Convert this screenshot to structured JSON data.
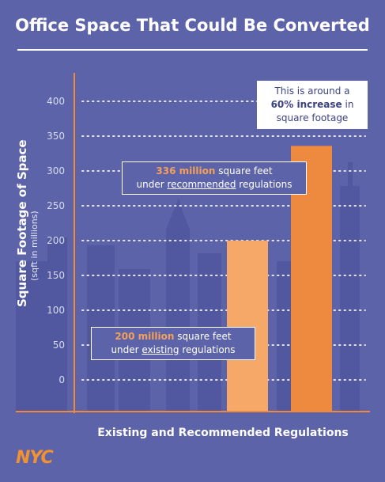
{
  "title": "Office Space That Could Be Converted",
  "chart_data": {
    "type": "bar",
    "categories": [
      "Existing",
      "Recommended"
    ],
    "values": [
      200,
      336
    ],
    "ylim": [
      0,
      400
    ],
    "yticks": [
      0,
      50,
      100,
      150,
      200,
      250,
      300,
      350,
      400
    ],
    "ylabel": "Square Footage of Space",
    "ylabel_sub": "(sqft in millions)",
    "xlabel": "Existing and Recommended Regulations",
    "grid": true,
    "bar_colors": [
      "#f5a868",
      "#ee8a3f"
    ]
  },
  "annotations": {
    "increase": {
      "line1": "This is around a",
      "highlight": "60% increase",
      "mid": " in",
      "line2": "square footage"
    },
    "recommended": {
      "highlight": "336 million",
      "rest1": " square feet",
      "pre": "under ",
      "underline": "recommended",
      "post": " regulations"
    },
    "existing": {
      "highlight": "200 million",
      "rest1": " square feet",
      "pre": "under ",
      "underline": "existing",
      "post": " regulations"
    }
  },
  "logo": "NYC",
  "colors": {
    "background": "#5d63a8",
    "accent": "#f2922e",
    "grid": "#ffffff"
  }
}
